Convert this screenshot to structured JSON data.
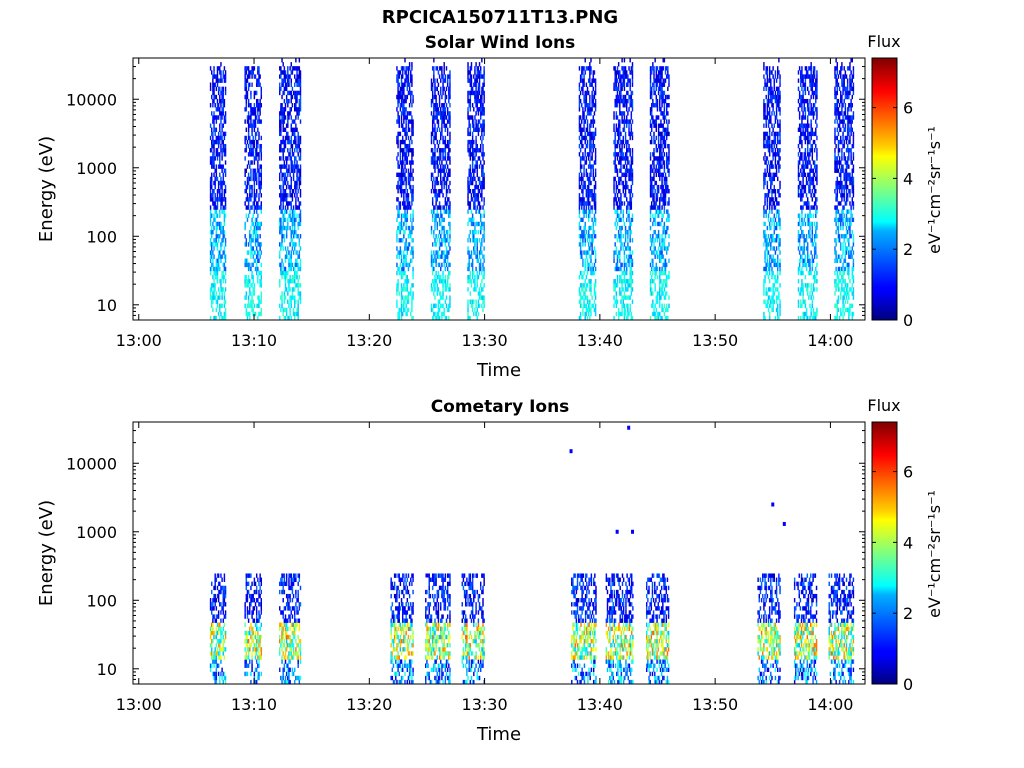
{
  "figure": {
    "suptitle": "RPCICA150711T13.PNG"
  },
  "chart_data": [
    {
      "type": "heatmap",
      "title": "Solar Wind Ions",
      "xlabel": "Time",
      "ylabel": "Energy (eV)",
      "y_scale": "log",
      "ylim": [
        6,
        40000
      ],
      "xlim": [
        "12:59:30",
        "14:03:00"
      ],
      "x_ticks": [
        "13:00",
        "13:10",
        "13:20",
        "13:30",
        "13:40",
        "13:50",
        "14:00"
      ],
      "y_ticks": [
        "10",
        "100",
        "1000",
        "10000"
      ],
      "colorbar": {
        "label": "Flux",
        "units": "eV⁻¹cm⁻²sr⁻¹s⁻¹",
        "range": [
          0,
          7.4
        ],
        "ticks": [
          "0",
          "2",
          "4",
          "6"
        ],
        "colormap": "jet"
      },
      "bursts": [
        {
          "start": "13:06:10",
          "end": "13:07:30"
        },
        {
          "start": "13:09:10",
          "end": "13:10:40"
        },
        {
          "start": "13:12:10",
          "end": "13:14:00"
        },
        {
          "start": "13:22:20",
          "end": "13:23:50"
        },
        {
          "start": "13:25:20",
          "end": "13:27:00"
        },
        {
          "start": "13:28:30",
          "end": "13:30:00"
        },
        {
          "start": "13:38:10",
          "end": "13:39:40"
        },
        {
          "start": "13:41:10",
          "end": "13:42:50"
        },
        {
          "start": "13:44:20",
          "end": "13:46:00"
        },
        {
          "start": "13:54:10",
          "end": "13:55:40"
        },
        {
          "start": "13:57:10",
          "end": "13:58:50"
        },
        {
          "start": "14:00:20",
          "end": "14:02:00"
        }
      ],
      "energy_profile": "high-energy flux 0.5-1.5 up to ~30000 eV; 2-3 near 10-200 eV"
    },
    {
      "type": "heatmap",
      "title": "Cometary Ions",
      "xlabel": "Time",
      "ylabel": "Energy (eV)",
      "y_scale": "log",
      "ylim": [
        6,
        40000
      ],
      "xlim": [
        "12:59:30",
        "14:03:00"
      ],
      "x_ticks": [
        "13:00",
        "13:10",
        "13:20",
        "13:30",
        "13:40",
        "13:50",
        "14:00"
      ],
      "y_ticks": [
        "10",
        "100",
        "1000",
        "10000"
      ],
      "colorbar": {
        "label": "Flux",
        "units": "eV⁻¹cm⁻²sr⁻¹s⁻¹",
        "range": [
          0,
          7.4
        ],
        "ticks": [
          "0",
          "2",
          "4",
          "6"
        ],
        "colormap": "jet"
      },
      "bursts": [
        {
          "start": "13:06:10",
          "end": "13:07:30"
        },
        {
          "start": "13:09:10",
          "end": "13:10:40"
        },
        {
          "start": "13:12:10",
          "end": "13:14:00"
        },
        {
          "start": "13:21:50",
          "end": "13:23:50"
        },
        {
          "start": "13:24:50",
          "end": "13:27:00"
        },
        {
          "start": "13:28:00",
          "end": "13:30:00"
        },
        {
          "start": "13:37:30",
          "end": "13:39:40"
        },
        {
          "start": "13:40:30",
          "end": "13:42:50"
        },
        {
          "start": "13:44:00",
          "end": "13:46:00"
        },
        {
          "start": "13:53:40",
          "end": "13:55:40"
        },
        {
          "start": "13:56:50",
          "end": "13:58:50"
        },
        {
          "start": "13:59:50",
          "end": "14:02:00"
        }
      ],
      "energy_profile": "flux up to ~200 eV; peak 4-6 near 15-40 eV",
      "isolated_points": [
        {
          "time": "13:37:30",
          "energy": 15000
        },
        {
          "time": "13:42:30",
          "energy": 33000
        },
        {
          "time": "13:41:30",
          "energy": 1000
        },
        {
          "time": "13:42:50",
          "energy": 1000
        },
        {
          "time": "13:55:00",
          "energy": 2500
        },
        {
          "time": "13:56:00",
          "energy": 1300
        },
        {
          "time": "13:25:00",
          "energy": 230
        }
      ]
    }
  ]
}
